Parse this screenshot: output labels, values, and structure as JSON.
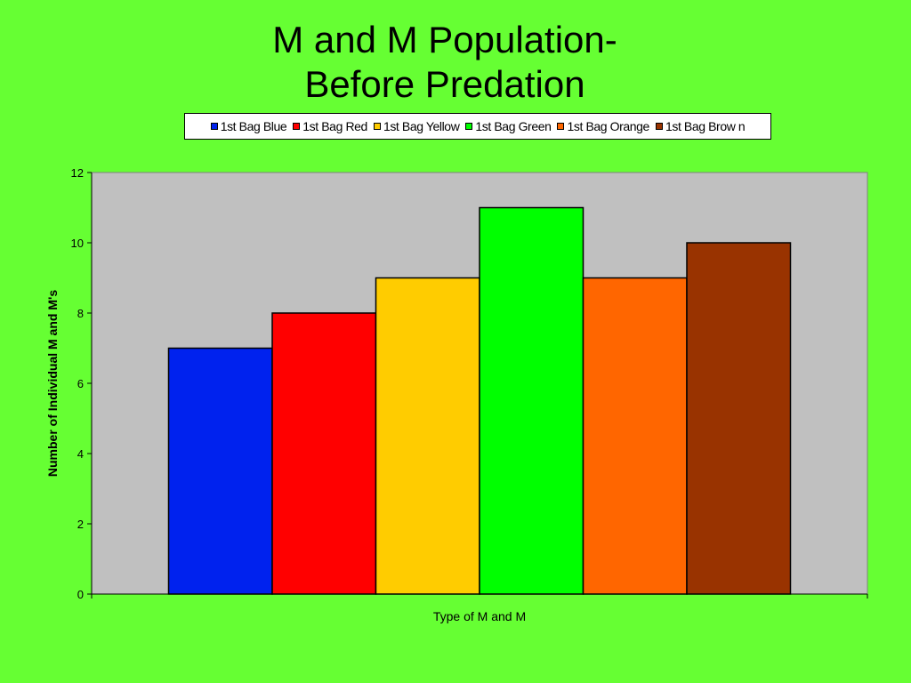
{
  "chart_data": {
    "type": "bar",
    "title_lines": [
      "M and M Population-",
      "Before Predation"
    ],
    "xlabel": "Type of M and M",
    "ylabel": "Number of Individual M and M's",
    "ylim": [
      0,
      12
    ],
    "yticks": [
      0,
      2,
      4,
      6,
      8,
      10,
      12
    ],
    "grid": false,
    "legend_position": "top",
    "plot_background": "#c0c0c0",
    "page_background": "#66ff33",
    "series": [
      {
        "name": "1st Bag Blue",
        "value": 7,
        "color": "#0022ee"
      },
      {
        "name": "1st Bag Red",
        "value": 8,
        "color": "#ff0000"
      },
      {
        "name": "1st Bag Yellow",
        "value": 9,
        "color": "#ffcc00"
      },
      {
        "name": "1st Bag Green",
        "value": 11,
        "color": "#00ff00"
      },
      {
        "name": "1st Bag Orange",
        "value": 9,
        "color": "#ff6600"
      },
      {
        "name": "1st Bag Brow n",
        "value": 10,
        "color": "#993300"
      }
    ]
  }
}
